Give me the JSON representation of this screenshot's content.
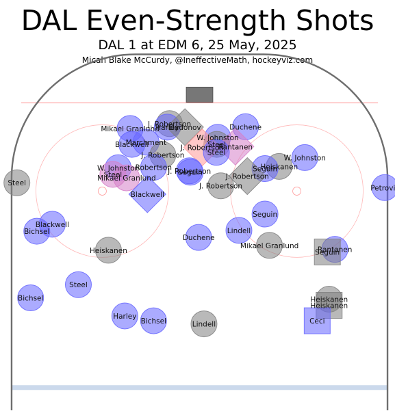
{
  "chart_data": {
    "type": "scatter",
    "title": "DAL Even-Strength Shots",
    "subtitle": "DAL 1 at EDM 6, 25 May, 2025",
    "credit": "Micah Blake McCurdy, @IneffectiveMath, hockeyviz.com",
    "xlim": [
      -42.5,
      42.5
    ],
    "ylim": [
      25,
      100
    ],
    "units": "feet",
    "colors": {
      "blue": "#6666ff",
      "grey": "#808080",
      "pink": "#d680c8",
      "salmon": "#ff9999",
      "rink_line": "#ff9999",
      "boards": "#6e6e6e",
      "blue_line": "#a9c0e0"
    },
    "shots": [
      {
        "name": "J. Robertson",
        "x": -6.8,
        "y": 84.3,
        "color": "grey",
        "shape": "circle"
      },
      {
        "name": "Harley",
        "x": -7.3,
        "y": 83.5,
        "color": "blue",
        "shape": "circle"
      },
      {
        "name": "Dadonov",
        "x": -3.3,
        "y": 83.5,
        "color": "grey",
        "shape": "diamond"
      },
      {
        "name": "Mikael Granlund",
        "x": -15.7,
        "y": 83.2,
        "color": "blue",
        "shape": "circle"
      },
      {
        "name": "Duchene",
        "x": 10.4,
        "y": 83.6,
        "color": "blue",
        "shape": "circle"
      },
      {
        "name": "W. Johnston",
        "x": 4.1,
        "y": 81.2,
        "color": "blue",
        "shape": "circle"
      },
      {
        "name": "Steel",
        "x": 3.9,
        "y": 79.6,
        "color": "grey",
        "shape": "circle"
      },
      {
        "name": "Marchment",
        "x": -12.1,
        "y": 80.1,
        "color": "blue",
        "shape": "circle"
      },
      {
        "name": "Blackwell",
        "x": -15.3,
        "y": 79.6,
        "color": "blue",
        "shape": "circle"
      },
      {
        "name": "J. Robertson",
        "x": 0.6,
        "y": 78.9,
        "color": "salmon",
        "shape": "diamond"
      },
      {
        "name": "Rantanen",
        "x": 8.1,
        "y": 79.1,
        "color": "pink",
        "shape": "diamond"
      },
      {
        "name": "Steel",
        "x": 3.8,
        "y": 77.8,
        "color": "blue",
        "shape": "circle"
      },
      {
        "name": "J. Robertson",
        "x": -8.3,
        "y": 77.2,
        "color": "grey",
        "shape": "circle"
      },
      {
        "name": "W. Johnston",
        "x": 23.8,
        "y": 76.6,
        "color": "blue",
        "shape": "circle"
      },
      {
        "name": "W. Johnston",
        "x": -18.4,
        "y": 74.3,
        "color": "blue",
        "shape": "circle"
      },
      {
        "name": "Robertson",
        "x": -10.4,
        "y": 74.4,
        "color": "blue",
        "shape": "circle"
      },
      {
        "name": "J. Robertson",
        "x": -2.3,
        "y": 73.6,
        "color": "blue",
        "shape": "circle"
      },
      {
        "name": "Seguin",
        "x": -2.1,
        "y": 73.3,
        "color": "blue",
        "shape": "circle"
      },
      {
        "name": "Heiskanen",
        "x": 18.0,
        "y": 74.6,
        "color": "grey",
        "shape": "circle"
      },
      {
        "name": "Seguin",
        "x": 14.8,
        "y": 74.1,
        "color": "blue",
        "shape": "circle"
      },
      {
        "name": "Steel",
        "x": -19.6,
        "y": 72.8,
        "color": "pink",
        "shape": "circle"
      },
      {
        "name": "Mikael Granlund",
        "x": -16.5,
        "y": 72.0,
        "color": "pink",
        "shape": "circle"
      },
      {
        "name": "J. Robertson",
        "x": 10.8,
        "y": 72.4,
        "color": "grey",
        "shape": "diamond"
      },
      {
        "name": "J. Robertson",
        "x": 4.8,
        "y": 70.2,
        "color": "grey",
        "shape": "circle"
      },
      {
        "name": "Steel",
        "x": -41.3,
        "y": 70.9,
        "color": "grey",
        "shape": "circle"
      },
      {
        "name": "Petrovic",
        "x": 41.9,
        "y": 69.8,
        "color": "blue",
        "shape": "circle"
      },
      {
        "name": "Blackwell",
        "x": -11.8,
        "y": 68.3,
        "color": "blue",
        "shape": "diamond"
      },
      {
        "name": "Seguin",
        "x": 14.8,
        "y": 63.8,
        "color": "blue",
        "shape": "circle"
      },
      {
        "name": "Blackwell",
        "x": -33.3,
        "y": 61.5,
        "color": "blue",
        "shape": "circle"
      },
      {
        "name": "Bichsel",
        "x": -36.8,
        "y": 59.9,
        "color": "blue",
        "shape": "circle"
      },
      {
        "name": "Lindell",
        "x": 8.9,
        "y": 60.1,
        "color": "blue",
        "shape": "circle"
      },
      {
        "name": "Duchene",
        "x": -0.2,
        "y": 58.5,
        "color": "blue",
        "shape": "circle"
      },
      {
        "name": "Mikael Granlund",
        "x": 15.8,
        "y": 56.7,
        "color": "grey",
        "shape": "circle"
      },
      {
        "name": "Rantanen",
        "x": 30.6,
        "y": 55.8,
        "color": "blue",
        "shape": "circle"
      },
      {
        "name": "Seguin",
        "x": 28.9,
        "y": 55.2,
        "color": "grey",
        "shape": "square"
      },
      {
        "name": "Heiskanen",
        "x": -20.6,
        "y": 55.6,
        "color": "grey",
        "shape": "circle"
      },
      {
        "name": "Steel",
        "x": -27.4,
        "y": 47.8,
        "color": "blue",
        "shape": "circle"
      },
      {
        "name": "Bichsel",
        "x": -38.2,
        "y": 44.8,
        "color": "blue",
        "shape": "circle"
      },
      {
        "name": "Heiskanen",
        "x": 29.3,
        "y": 44.5,
        "color": "grey",
        "shape": "circle"
      },
      {
        "name": "Heiskanen",
        "x": 29.3,
        "y": 43.1,
        "color": "grey",
        "shape": "square"
      },
      {
        "name": "Harley",
        "x": -16.9,
        "y": 40.7,
        "color": "blue",
        "shape": "circle"
      },
      {
        "name": "Bichsel",
        "x": -10.4,
        "y": 39.6,
        "color": "blue",
        "shape": "circle"
      },
      {
        "name": "Ceci",
        "x": 26.6,
        "y": 39.6,
        "color": "blue",
        "shape": "square"
      },
      {
        "name": "Lindell",
        "x": 1.0,
        "y": 38.9,
        "color": "grey",
        "shape": "circle"
      }
    ]
  }
}
